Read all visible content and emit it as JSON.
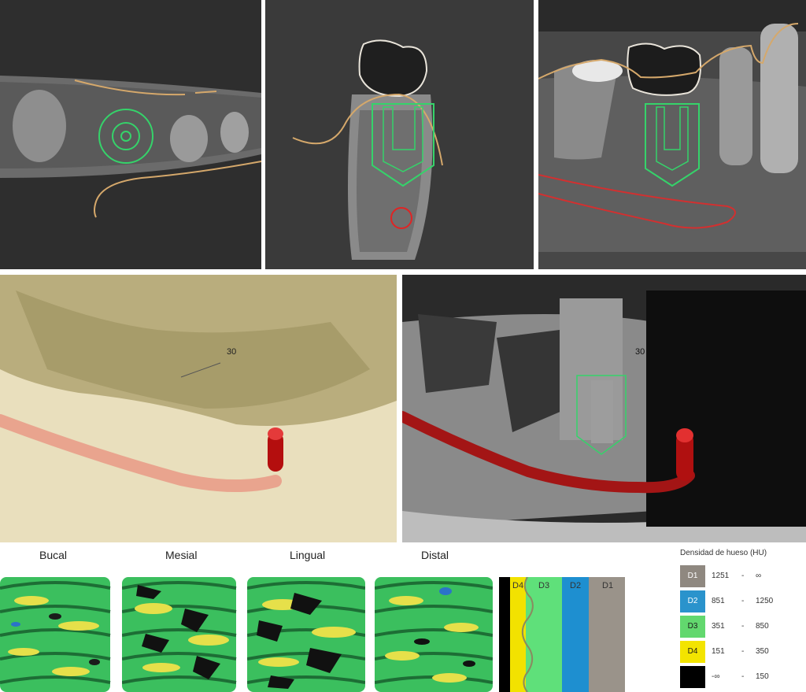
{
  "views": {
    "axial": "30",
    "render3d": "30"
  },
  "side_labels": [
    "Bucal",
    "Mesial",
    "Lingual",
    "Distal"
  ],
  "density_bar": {
    "labels": [
      "D4",
      "D3",
      "D2",
      "D1"
    ],
    "colors": [
      "#f2e200",
      "#5fe07a",
      "#1e8fd0",
      "#9a938a"
    ]
  },
  "legend": {
    "title": "Densidad de hueso (HU)",
    "rows": [
      {
        "class": "D1",
        "from": "1251",
        "sep": "-",
        "to": "∞",
        "color": "#8f8880",
        "text_color": "#ffffff"
      },
      {
        "class": "D2",
        "from": "851",
        "sep": "-",
        "to": "1250",
        "color": "#2a93cc",
        "text_color": "#ffffff"
      },
      {
        "class": "D3",
        "from": "351",
        "sep": "-",
        "to": "850",
        "color": "#62d86e",
        "text_color": "#1a1a1a"
      },
      {
        "class": "D4",
        "from": "151",
        "sep": "-",
        "to": "350",
        "color": "#f3e400",
        "text_color": "#1a1a1a"
      },
      {
        "class": "",
        "from": "-∞",
        "sep": "-",
        "to": "150",
        "color": "#000000",
        "text_color": "#ffffff"
      }
    ]
  }
}
